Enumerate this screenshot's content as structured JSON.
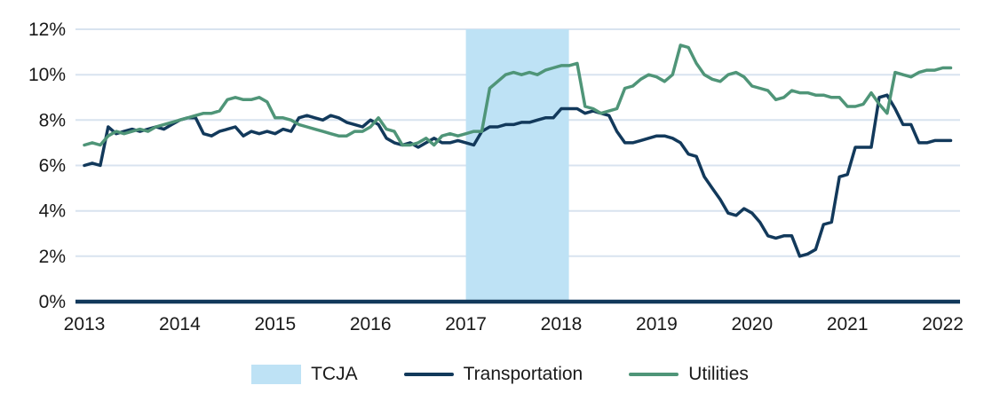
{
  "chart_data": {
    "type": "line",
    "title": "",
    "y_axis": {
      "min": 0,
      "max": 12,
      "ticks": [
        0,
        2,
        4,
        6,
        8,
        10,
        12
      ],
      "tick_labels": [
        "0%",
        "2%",
        "4%",
        "6%",
        "8%",
        "10%",
        "12%"
      ]
    },
    "x_axis": {
      "ticks": [
        2013,
        2014,
        2015,
        2016,
        2017,
        2018,
        2019,
        2020,
        2021,
        2022
      ],
      "tick_labels": [
        "2013",
        "2014",
        "2015",
        "2016",
        "2017",
        "2018",
        "2019",
        "2020",
        "2021",
        "2022"
      ]
    },
    "band": {
      "label": "TCJA",
      "color": "#bee2f5",
      "x_from": 2017.0,
      "x_to": 2018.08
    },
    "x_start": 2013.0,
    "x_step_years": 0.0833333,
    "grid_on": true,
    "grid_color": "#d8e3ef",
    "axis_color": "#12395b",
    "legend_position": "bottom",
    "series": [
      {
        "name": "Transportation",
        "color": "#12395b",
        "values": [
          6.0,
          6.1,
          6.0,
          7.7,
          7.4,
          7.5,
          7.6,
          7.5,
          7.6,
          7.7,
          7.6,
          7.8,
          8.0,
          8.1,
          8.1,
          7.4,
          7.3,
          7.5,
          7.6,
          7.7,
          7.3,
          7.5,
          7.4,
          7.5,
          7.4,
          7.6,
          7.5,
          8.1,
          8.2,
          8.1,
          8.0,
          8.2,
          8.1,
          7.9,
          7.8,
          7.7,
          8.0,
          7.8,
          7.2,
          7.0,
          6.9,
          7.0,
          6.8,
          7.0,
          7.2,
          7.0,
          7.0,
          7.1,
          7.0,
          6.9,
          7.5,
          7.7,
          7.7,
          7.8,
          7.8,
          7.9,
          7.9,
          8.0,
          8.1,
          8.1,
          8.5,
          8.5,
          8.5,
          8.3,
          8.4,
          8.3,
          8.2,
          7.5,
          7.0,
          7.0,
          7.1,
          7.2,
          7.3,
          7.3,
          7.2,
          7.0,
          6.5,
          6.4,
          5.5,
          5.0,
          4.5,
          3.9,
          3.8,
          4.1,
          3.9,
          3.5,
          2.9,
          2.8,
          2.9,
          2.9,
          2.0,
          2.1,
          2.3,
          3.4,
          3.5,
          5.5,
          5.6,
          6.8,
          6.8,
          6.8,
          9.0,
          9.1,
          8.5,
          7.8,
          7.8,
          7.0,
          7.0,
          7.1,
          7.1,
          7.1
        ]
      },
      {
        "name": "Utilities",
        "color": "#4f9578",
        "values": [
          6.9,
          7.0,
          6.9,
          7.3,
          7.5,
          7.4,
          7.5,
          7.6,
          7.5,
          7.7,
          7.8,
          7.9,
          8.0,
          8.1,
          8.2,
          8.3,
          8.3,
          8.4,
          8.9,
          9.0,
          8.9,
          8.9,
          9.0,
          8.8,
          8.1,
          8.1,
          8.0,
          7.8,
          7.7,
          7.6,
          7.5,
          7.4,
          7.3,
          7.3,
          7.5,
          7.5,
          7.7,
          8.1,
          7.6,
          7.5,
          6.9,
          6.9,
          7.0,
          7.2,
          6.9,
          7.3,
          7.4,
          7.3,
          7.4,
          7.5,
          7.5,
          9.4,
          9.7,
          10.0,
          10.1,
          10.0,
          10.1,
          10.0,
          10.2,
          10.3,
          10.4,
          10.4,
          10.5,
          8.6,
          8.5,
          8.3,
          8.4,
          8.5,
          9.4,
          9.5,
          9.8,
          10.0,
          9.9,
          9.7,
          10.0,
          11.3,
          11.2,
          10.5,
          10.0,
          9.8,
          9.7,
          10.0,
          10.1,
          9.9,
          9.5,
          9.4,
          9.3,
          8.9,
          9.0,
          9.3,
          9.2,
          9.2,
          9.1,
          9.1,
          9.0,
          9.0,
          8.6,
          8.6,
          8.7,
          9.2,
          8.7,
          8.3,
          10.1,
          10.0,
          9.9,
          10.1,
          10.2,
          10.2,
          10.3,
          10.3
        ]
      }
    ]
  },
  "text_color": "#191919"
}
